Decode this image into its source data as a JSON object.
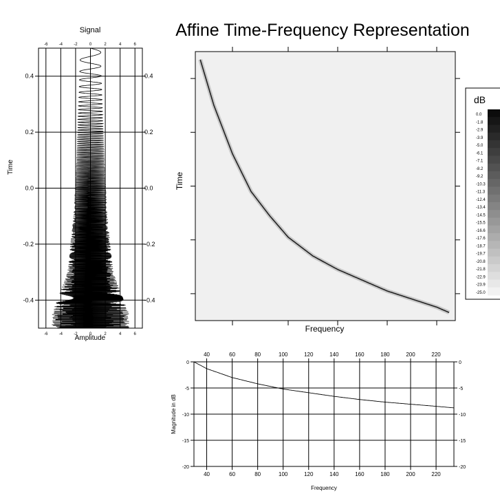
{
  "chart_data": [
    {
      "type": "line",
      "title": "Signal",
      "xlabel": "Amplitude",
      "ylabel": "Time",
      "xlim": [
        -7,
        7
      ],
      "ylim": [
        -0.5,
        0.5
      ],
      "x_ticks": [
        "-6",
        "-4",
        "-2",
        "0",
        "2",
        "4",
        "6"
      ],
      "y_ticks": [
        "-0.4",
        "-0.2",
        "0.0",
        "0.2",
        "0.4"
      ],
      "grid": true,
      "series": [
        {
          "description_values": "chirp signal whose amplitude grows and period shortens as time decreases from 0.5 to -0.5",
          "amplitude_at_time": {
            "t": [
              0.45,
              0.3,
              0.1,
              -0.1,
              -0.3,
              -0.45
            ],
            "amp": [
              1.4,
              1.6,
              1.9,
              2.3,
              3.1,
              5.2
            ]
          }
        }
      ]
    },
    {
      "type": "heatmap",
      "title": "Affine Time-Frequency Representation",
      "xlabel": "Frequency",
      "ylabel": "Time",
      "grid": false,
      "colorbar": {
        "title": "dB",
        "labels": [
          "0.0",
          "-1.8",
          "-2.9",
          "-3.9",
          "-5.0",
          "-6.1",
          "-7.1",
          "-8.2",
          "-9.2",
          "-10.3",
          "-11.3",
          "-12.4",
          "-13.4",
          "-14.5",
          "-15.5",
          "-16.6",
          "-17.6",
          "-18.7",
          "-19.7",
          "-20.8",
          "-21.8",
          "-22.9",
          "-23.9",
          "-25.0"
        ],
        "min": -25.0,
        "max": 0.0
      },
      "ridge": {
        "frequency": [
          29,
          40,
          55,
          70,
          85,
          100,
          120,
          140,
          160,
          180,
          200,
          220,
          230
        ],
        "time": [
          0.47,
          0.3,
          0.12,
          -0.02,
          -0.11,
          -0.19,
          -0.26,
          -0.31,
          -0.35,
          -0.39,
          -0.42,
          -0.45,
          -0.47
        ]
      }
    },
    {
      "type": "line",
      "title": "",
      "xlabel": "Frequency",
      "ylabel": "Magnitude in dB",
      "xlim": [
        30,
        234
      ],
      "ylim": [
        -20,
        0
      ],
      "x_ticks": [
        "40",
        "60",
        "80",
        "100",
        "120",
        "140",
        "160",
        "180",
        "200",
        "220"
      ],
      "y_ticks": [
        "0",
        "-5",
        "-10",
        "-15",
        "-20"
      ],
      "grid": true,
      "series": [
        {
          "x": [
            30,
            40,
            60,
            80,
            100,
            120,
            140,
            160,
            180,
            200,
            220,
            234
          ],
          "y": [
            0.0,
            -1.3,
            -3.0,
            -4.2,
            -5.2,
            -5.9,
            -6.6,
            -7.2,
            -7.7,
            -8.1,
            -8.5,
            -8.8
          ]
        }
      ]
    }
  ]
}
